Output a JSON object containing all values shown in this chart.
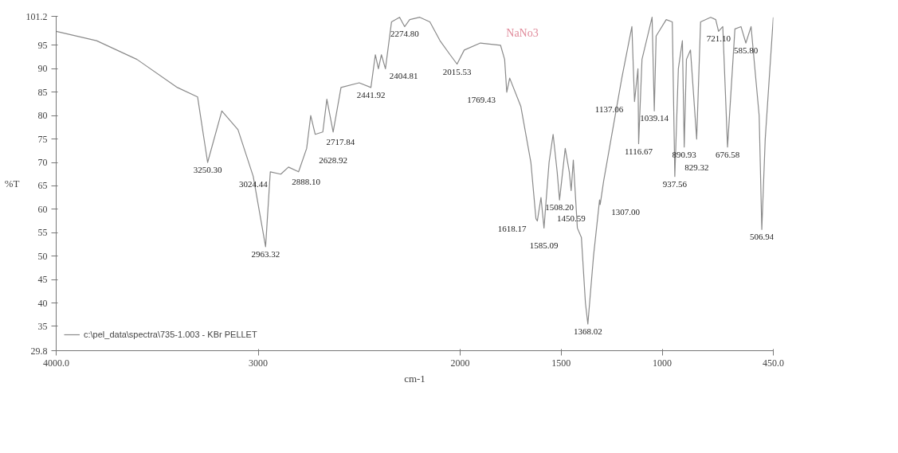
{
  "chart_data": {
    "type": "line",
    "title": "NaNo3",
    "xlabel": "cm-1",
    "ylabel": "%T",
    "xlim": [
      4000,
      450
    ],
    "ylim": [
      29.8,
      101.2
    ],
    "xticks": [
      {
        "value": 4000,
        "label": "4000.0"
      },
      3000,
      2000,
      1500,
      1000,
      {
        "value": 450,
        "label": "450.0"
      }
    ],
    "yticks": [
      29.8,
      35,
      40,
      45,
      50,
      55,
      60,
      65,
      70,
      75,
      80,
      85,
      90,
      95,
      101.2
    ],
    "grid": false,
    "legend": "bottom left",
    "line_style": "solid",
    "marker": "none",
    "series": [
      {
        "name": "c:\\pel_data\\spectra\\735-1.003 - KBr PELLET",
        "color": "#8a8a8a",
        "x": [
          4000,
          3800,
          3600,
          3400,
          3300,
          3250.3,
          3180,
          3100,
          3024.44,
          2963.32,
          2940,
          2888.1,
          2850,
          2800,
          2760,
          2740,
          2717.84,
          2680,
          2660,
          2628.92,
          2590,
          2500,
          2441.92,
          2420,
          2404.81,
          2390,
          2370,
          2340,
          2300,
          2274.8,
          2250,
          2200,
          2150,
          2100,
          2050,
          2015.53,
          1980,
          1900,
          1800,
          1780,
          1769.43,
          1755,
          1700,
          1650,
          1625,
          1618.17,
          1600,
          1585.09,
          1560,
          1540,
          1520,
          1508.2,
          1480,
          1460,
          1450.59,
          1440,
          1420,
          1400,
          1380,
          1368.02,
          1340,
          1310,
          1307,
          1290,
          1200,
          1150,
          1137.06,
          1120,
          1116.67,
          1100,
          1050,
          1039.14,
          1030,
          980,
          950,
          937.56,
          920,
          900,
          890.93,
          880,
          860,
          829.32,
          810,
          760,
          735,
          721.1,
          700,
          676.58,
          640,
          610,
          585.8,
          560,
          520,
          506.94,
          490,
          450
        ],
        "values": [
          98,
          96,
          92,
          86,
          84,
          70,
          81,
          77,
          67,
          52,
          68,
          67.5,
          69,
          68,
          73,
          80,
          76,
          76.5,
          83.5,
          76.5,
          86,
          87,
          86,
          93,
          90,
          93,
          90,
          100,
          101,
          99,
          100.5,
          101,
          100,
          96,
          93,
          91,
          94,
          95.5,
          95,
          92,
          85,
          88,
          82,
          70,
          58,
          57.5,
          62.5,
          56,
          70,
          76,
          68,
          62,
          73,
          68,
          64,
          70.5,
          56,
          54,
          40,
          35.5,
          50,
          62,
          61,
          66,
          88,
          99,
          83,
          90,
          74,
          92,
          101,
          81,
          97,
          100.5,
          100,
          67,
          90,
          96,
          73.3,
          92,
          94,
          75,
          100,
          101,
          100.5,
          98,
          99,
          73.3,
          98.5,
          99,
          95.5,
          99,
          80,
          55.7,
          75,
          101
        ]
      }
    ],
    "annotations": [
      {
        "text": "3250.30",
        "x": 3250.3,
        "y": 70
      },
      {
        "text": "3024.44",
        "x": 3024.44,
        "y": 67
      },
      {
        "text": "2963.32",
        "x": 2963.32,
        "y": 52
      },
      {
        "text": "2888.10",
        "x": 2888.1,
        "y": 67.5
      },
      {
        "text": "2717.84",
        "x": 2717.84,
        "y": 76
      },
      {
        "text": "2628.92",
        "x": 2628.92,
        "y": 76.5
      },
      {
        "text": "2441.92",
        "x": 2441.92,
        "y": 86
      },
      {
        "text": "2404.81",
        "x": 2404.81,
        "y": 90
      },
      {
        "text": "2274.80",
        "x": 2274.8,
        "y": 99
      },
      {
        "text": "2015.53",
        "x": 2015.53,
        "y": 91
      },
      {
        "text": "1769.43",
        "x": 1769.43,
        "y": 85
      },
      {
        "text": "1618.17",
        "x": 1618.17,
        "y": 57.5
      },
      {
        "text": "1585.09",
        "x": 1585.09,
        "y": 56
      },
      {
        "text": "1508.20",
        "x": 1508.2,
        "y": 62
      },
      {
        "text": "1450.59",
        "x": 1450.59,
        "y": 64
      },
      {
        "text": "1368.02",
        "x": 1368.02,
        "y": 35.5
      },
      {
        "text": "1307.00",
        "x": 1307,
        "y": 61
      },
      {
        "text": "1137.06",
        "x": 1137.06,
        "y": 83
      },
      {
        "text": "1116.67",
        "x": 1116.67,
        "y": 74
      },
      {
        "text": "1039.14",
        "x": 1039.14,
        "y": 81
      },
      {
        "text": "937.56",
        "x": 937.56,
        "y": 67
      },
      {
        "text": "890.93",
        "x": 890.93,
        "y": 73.3
      },
      {
        "text": "829.32",
        "x": 829.32,
        "y": 75
      },
      {
        "text": "721.10",
        "x": 721.1,
        "y": 98
      },
      {
        "text": "676.58",
        "x": 676.58,
        "y": 73.3
      },
      {
        "text": "585.80",
        "x": 585.8,
        "y": 95.5
      },
      {
        "text": "506.94",
        "x": 506.94,
        "y": 55.7
      }
    ]
  }
}
